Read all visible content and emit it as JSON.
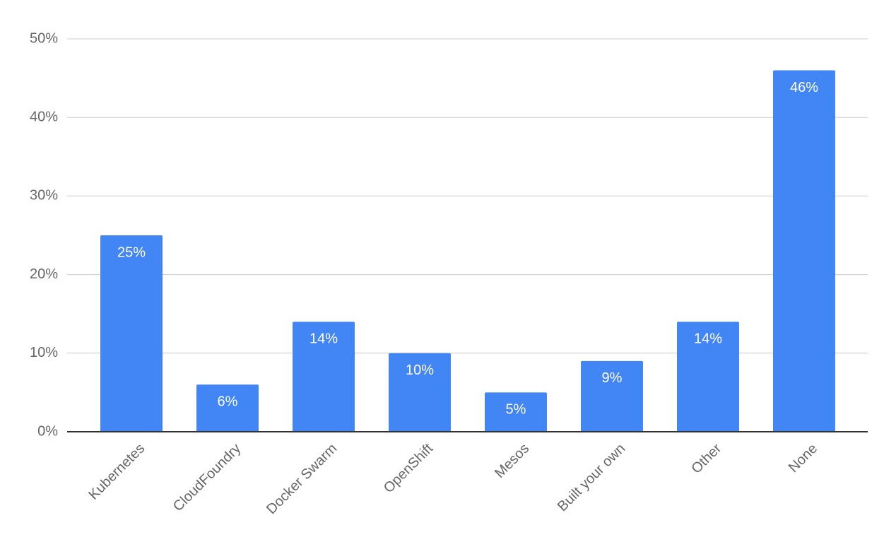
{
  "chart_data": {
    "type": "bar",
    "categories": [
      "Kubernetes",
      "CloudFoundry",
      "Docker Swarm",
      "OpenShift",
      "Mesos",
      "Built your own",
      "Other",
      "None"
    ],
    "values": [
      25,
      6,
      14,
      10,
      5,
      9,
      14,
      46
    ],
    "value_labels": [
      "25%",
      "6%",
      "14%",
      "10%",
      "5%",
      "9%",
      "14%",
      "46%"
    ],
    "color": "#4285f4",
    "ylim": [
      0,
      50
    ],
    "yticks": [
      {
        "value": 0,
        "label": "0%"
      },
      {
        "value": 10,
        "label": "10%"
      },
      {
        "value": 20,
        "label": "20%"
      },
      {
        "value": 30,
        "label": "30%"
      },
      {
        "value": 40,
        "label": "40%"
      },
      {
        "value": 50,
        "label": "50%"
      }
    ],
    "grid": true
  }
}
